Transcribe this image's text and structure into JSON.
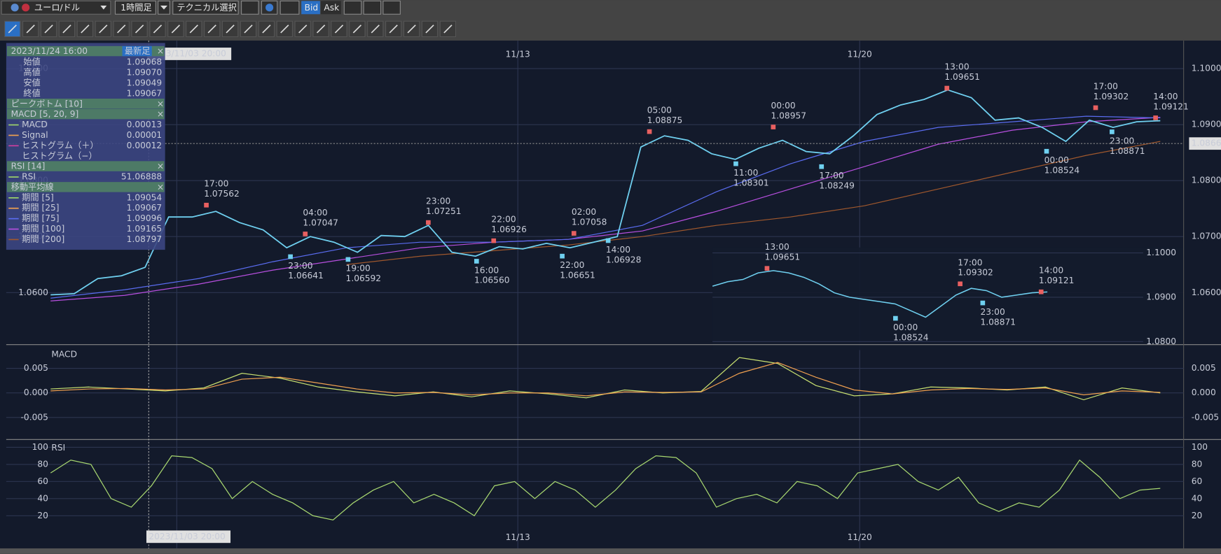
{
  "toolbar": {
    "symbol": "ユーロ/ドル",
    "timeframe": "1時間足",
    "technical": "テクニカル選択",
    "bid": "Bid",
    "ask": "Ask"
  },
  "info_panel": {
    "datetime": "2023/11/24 16:00",
    "latest": "最新足",
    "close": "×",
    "ohlc": [
      {
        "label": "始値",
        "value": "1.09068"
      },
      {
        "label": "高値",
        "value": "1.09070"
      },
      {
        "label": "安値",
        "value": "1.09049"
      },
      {
        "label": "終値",
        "value": "1.09067"
      }
    ],
    "sections": [
      {
        "title": "ピークボトム [10]"
      },
      {
        "title": "MACD [5, 20, 9]",
        "rows": [
          {
            "label": "MACD",
            "value": "0.00013",
            "color": "#9fd46a"
          },
          {
            "label": "Signal",
            "value": "0.00001",
            "color": "#f0a050"
          },
          {
            "label": "ヒストグラム（＋）",
            "value": "0.00012",
            "color": "#d040a0"
          },
          {
            "label": "ヒストグラム（−）"
          }
        ]
      },
      {
        "title": "RSI [14]",
        "rows": [
          {
            "label": "RSI",
            "value": "51.06888",
            "color": "#9fd46a"
          }
        ]
      },
      {
        "title": "移動平均線",
        "rows": [
          {
            "label": "期間 [5]",
            "value": "1.09054",
            "color": "#9fd46a"
          },
          {
            "label": "期間 [25]",
            "value": "1.09067",
            "color": "#f0a050"
          },
          {
            "label": "期間 [75]",
            "value": "1.09096",
            "color": "#5a6cf0"
          },
          {
            "label": "期間 [100]",
            "value": "1.09165",
            "color": "#b84fe0"
          },
          {
            "label": "期間 [200]",
            "value": "1.08797",
            "color": "#a0582d"
          }
        ]
      }
    ]
  },
  "crosshair_time": "2023/11/03 20:00",
  "current_price": {
    "value": 1.08662,
    "label": "1.08662"
  },
  "chart_data": [
    {
      "type": "line",
      "ylim": [
        1.0507,
        1.105
      ],
      "yticks": [
        {
          "value": 1.06,
          "label": "1.0600"
        },
        {
          "value": 1.07,
          "label": "1.0700"
        },
        {
          "value": 1.08,
          "label": "1.0800"
        },
        {
          "value": 1.09,
          "label": "1.0900"
        },
        {
          "value": 1.1,
          "label": "1.1000"
        }
      ],
      "x_labels": [
        "11/13",
        "11/20"
      ],
      "series": [
        {
          "color": "#b84fe0",
          "values": [
            1.0585,
            1.0595,
            1.0615,
            1.064,
            1.066,
            1.068,
            1.069,
            1.0695,
            1.071,
            1.0745,
            1.0785,
            1.0825,
            1.0865,
            1.089,
            1.0905,
            1.0913
          ]
        },
        {
          "color": "#a0582d",
          "values": [
            null,
            null,
            null,
            null,
            1.065,
            1.0665,
            1.0675,
            1.0685,
            1.07,
            1.072,
            1.0735,
            1.0755,
            1.0785,
            1.0815,
            1.0845,
            1.087
          ]
        },
        {
          "color": "#5a6cf0",
          "values": [
            1.059,
            1.0605,
            1.0625,
            1.0655,
            1.068,
            1.069,
            1.069,
            1.0695,
            1.072,
            1.078,
            1.083,
            1.087,
            1.0895,
            1.0905,
            1.0915,
            1.0912
          ]
        },
        {
          "color": "#6fd0f0",
          "values": [
            1.0596,
            1.0598,
            1.0625,
            1.063,
            1.0645,
            1.0735,
            1.0735,
            1.0745,
            1.0725,
            1.0712,
            1.068,
            1.07,
            1.069,
            1.0672,
            1.0702,
            1.07,
            1.072,
            1.0672,
            1.0665,
            1.0682,
            1.0678,
            1.0688,
            1.068,
            1.069,
            1.07,
            1.086,
            1.088,
            1.0872,
            1.0848,
            1.0838,
            1.0858,
            1.0872,
            1.0852,
            1.0848,
            1.088,
            1.0918,
            1.0935,
            1.0945,
            1.0962,
            1.0948,
            1.0908,
            1.0912,
            1.0895,
            1.087,
            1.0908,
            1.0895,
            1.0905,
            1.0907
          ]
        }
      ],
      "highs": {
        "times": [
          "17:00",
          "04:00",
          "23:00",
          "22:00",
          "02:00",
          "05:00",
          "00:00",
          "13:00",
          "17:00",
          "14:00"
        ],
        "values": [
          1.07562,
          1.07047,
          1.07251,
          1.06926,
          1.07058,
          1.08875,
          1.08957,
          1.09651,
          1.09302,
          1.09121
        ],
        "value_labels": [
          "1.07562",
          "1.07047",
          "1.07251",
          "1.06926",
          "1.07058",
          "1.08875",
          "1.08957",
          "1.09651",
          "1.09302",
          "1.09121"
        ]
      },
      "lows": {
        "times": [
          "23:00",
          "19:00",
          "16:00",
          "22:00",
          "14:00",
          "11:00",
          "17:00",
          "00:00",
          "23:00"
        ],
        "values": [
          1.06641,
          1.06592,
          1.0656,
          1.06651,
          1.06928,
          1.08301,
          1.08249,
          1.08524,
          1.08871
        ],
        "value_labels": [
          "1.06641",
          "1.06592",
          "1.06560",
          "1.06651",
          "1.06928",
          "1.08301",
          "1.08249",
          "1.08524",
          "1.08871"
        ]
      }
    },
    {
      "type": "line",
      "ylim": [
        1.07807,
        1.10123
      ],
      "yticks": [
        {
          "value": 1.08,
          "label": "1.0800"
        },
        {
          "value": 1.09,
          "label": "1.0900"
        },
        {
          "value": 1.1,
          "label": "1.1000"
        }
      ],
      "series": [
        {
          "color": "#6fd0f0",
          "values": [
            1.0925,
            1.0935,
            1.094,
            1.0955,
            1.096,
            1.0955,
            1.0945,
            1.093,
            1.091,
            1.09,
            1.0895,
            1.089,
            1.0885,
            1.087,
            1.0855,
            1.088,
            1.0905,
            1.092,
            1.0915,
            1.09,
            1.0905,
            1.091,
            1.0912
          ]
        }
      ],
      "highs": {
        "times": [
          "13:00",
          "17:00",
          "14:00"
        ],
        "values": [
          1.09651,
          1.09302,
          1.09121
        ],
        "value_labels": [
          "1.09651",
          "1.09302",
          "1.09121"
        ]
      },
      "lows": {
        "times": [
          "00:00",
          "23:00"
        ],
        "values": [
          1.08524,
          1.08871
        ],
        "value_labels": [
          "1.08524",
          "1.08871"
        ]
      }
    },
    {
      "type": "line",
      "title": "MACD",
      "ylim": [
        -0.0095,
        0.0092
      ],
      "yticks": [
        -0.005,
        {
          "value": 0,
          "label": "0.000"
        },
        0.005
      ],
      "series": [
        {
          "color": "#c8e070",
          "values": [
            0.0008,
            0.0012,
            0.0008,
            0.0004,
            0.001,
            0.004,
            0.003,
            0.0012,
            0.0002,
            -0.0006,
            0.0002,
            -0.0008,
            0.0004,
            -0.0002,
            -0.001,
            0.0006,
            0,
            0.0003,
            0.0072,
            0.006,
            0.0015,
            -0.0006,
            -0.0002,
            0.0012,
            0.001,
            0.0006,
            0.0012,
            -0.0014,
            0.001,
            0
          ]
        },
        {
          "color": "#f0a050",
          "values": [
            0.0004,
            0.0008,
            0.0009,
            0.0006,
            0.0008,
            0.0028,
            0.0032,
            0.002,
            0.0008,
            0,
            0.0001,
            -0.0004,
            0,
            0,
            -0.0006,
            0.0002,
            0.0001,
            0.0002,
            0.004,
            0.0062,
            0.0032,
            0.0006,
            -0.0002,
            0.0006,
            0.0009,
            0.0007,
            0.001,
            -0.0004,
            0.0004,
            0.0001
          ]
        }
      ]
    },
    {
      "type": "line",
      "title": "RSI",
      "ylim": [
        -18.2,
        107.3
      ],
      "yticks": [
        20,
        40,
        60,
        80,
        100
      ],
      "x_labels": [
        "11/13",
        "11/20"
      ],
      "series": [
        {
          "color": "#a8d870",
          "values": [
            70,
            85,
            80,
            40,
            30,
            55,
            90,
            88,
            75,
            40,
            60,
            45,
            35,
            20,
            15,
            35,
            50,
            60,
            35,
            45,
            35,
            20,
            55,
            60,
            40,
            60,
            50,
            30,
            50,
            75,
            90,
            88,
            70,
            30,
            40,
            45,
            35,
            60,
            55,
            40,
            70,
            75,
            80,
            60,
            50,
            65,
            35,
            25,
            35,
            30,
            50,
            85,
            65,
            40,
            50,
            52
          ]
        }
      ]
    }
  ]
}
